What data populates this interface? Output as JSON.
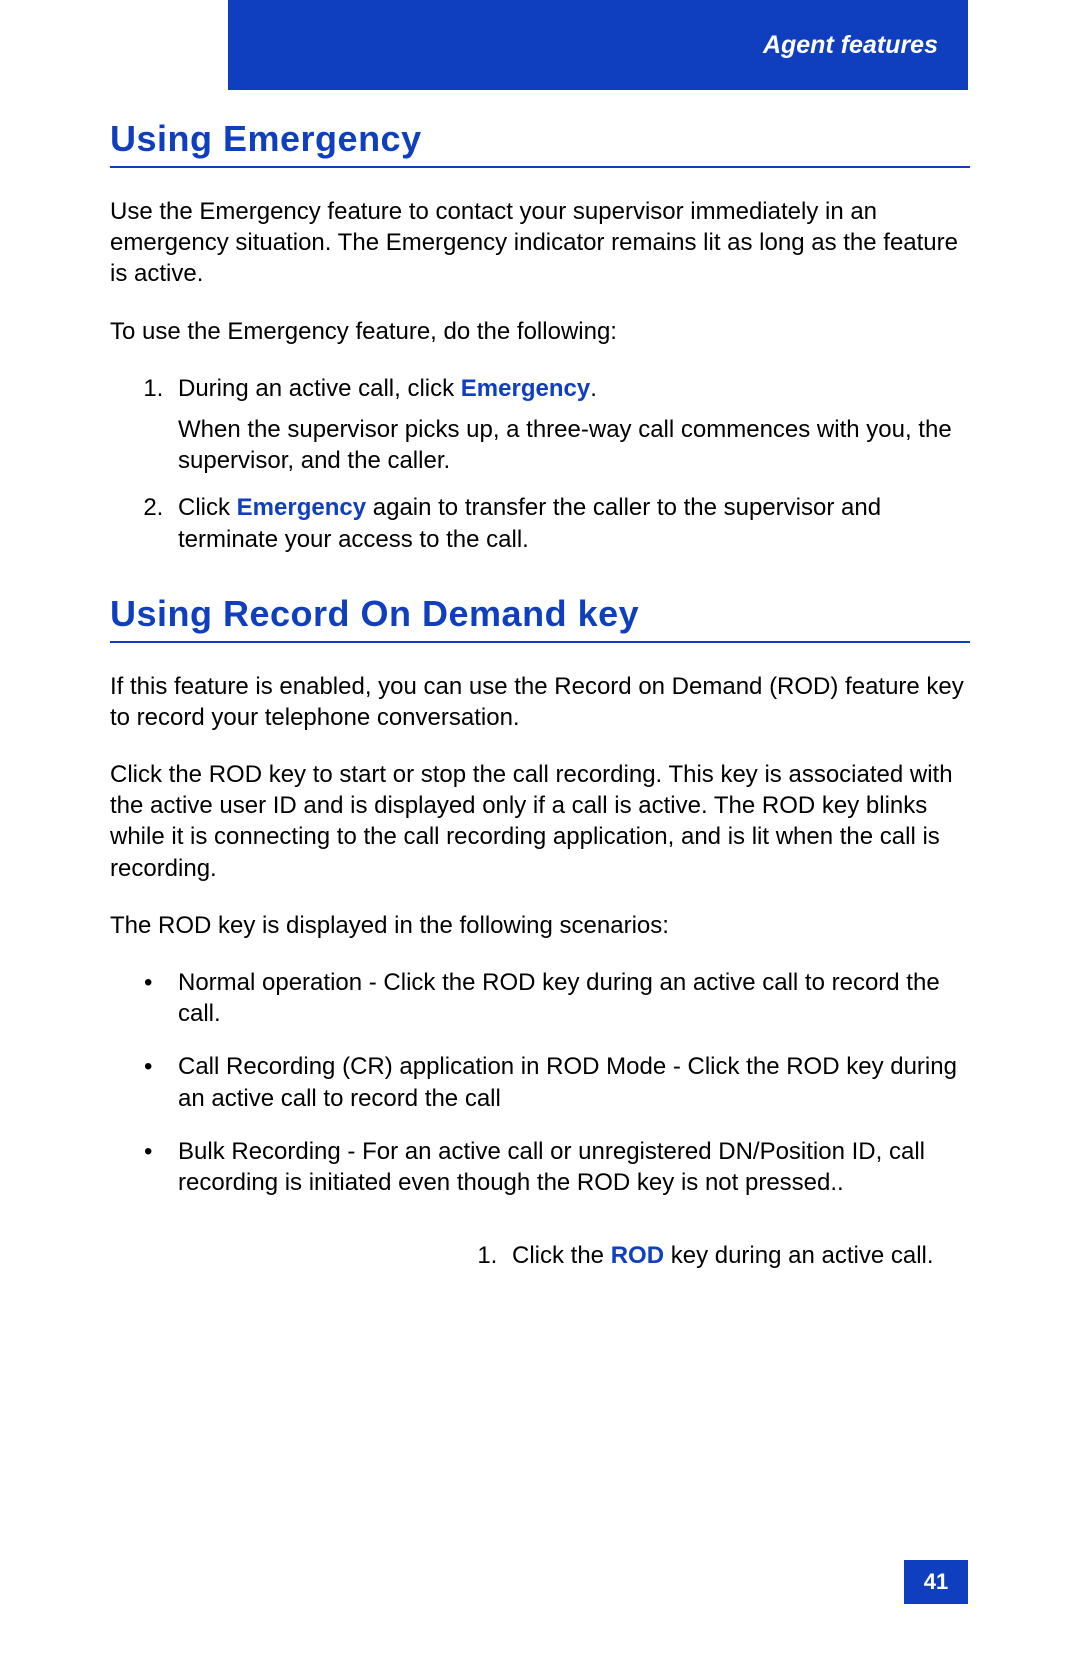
{
  "colors": {
    "brand_blue": "#0f3fbf",
    "white": "#ffffff",
    "text": "#000000"
  },
  "header": {
    "title": "Agent features"
  },
  "section1": {
    "heading": "Using Emergency",
    "intro": "Use the Emergency feature to contact your supervisor immediately in an emergency situation. The Emergency indicator remains lit as long as the feature is active.",
    "lead_in": "To use the Emergency feature, do the following:",
    "steps": [
      {
        "pre": "During an active call, click ",
        "kw": "Emergency",
        "post": ".",
        "sub": "When the supervisor picks up, a three-way call commences with you, the supervisor, and the caller."
      },
      {
        "pre": "Click ",
        "kw": "Emergency",
        "post": " again to transfer the caller to the supervisor and terminate your access to the call."
      }
    ]
  },
  "section2": {
    "heading": "Using Record On Demand key",
    "p1": "If this feature is enabled, you can use the Record on Demand (ROD) feature key to record your telephone conversation.",
    "p2": "Click the ROD key to start or stop the call recording. This key is associated with the active user ID and is displayed only if a call is active. The ROD key blinks while it is connecting to the call recording application, and is lit when the call is recording.",
    "p3": "The ROD key is displayed in the following scenarios:",
    "bullets": [
      "Normal operation - Click the ROD key during an active call to record the call.",
      "Call Recording (CR) application in ROD Mode - Click the ROD key during an active call to record the call",
      "Bulk Recording - For an active call or unregistered DN/Position ID, call recording is initiated even though the ROD key is not pressed.."
    ],
    "lower_step": {
      "pre": "Click the ",
      "kw": "ROD",
      "post": " key during an active call."
    }
  },
  "page_number": "41"
}
